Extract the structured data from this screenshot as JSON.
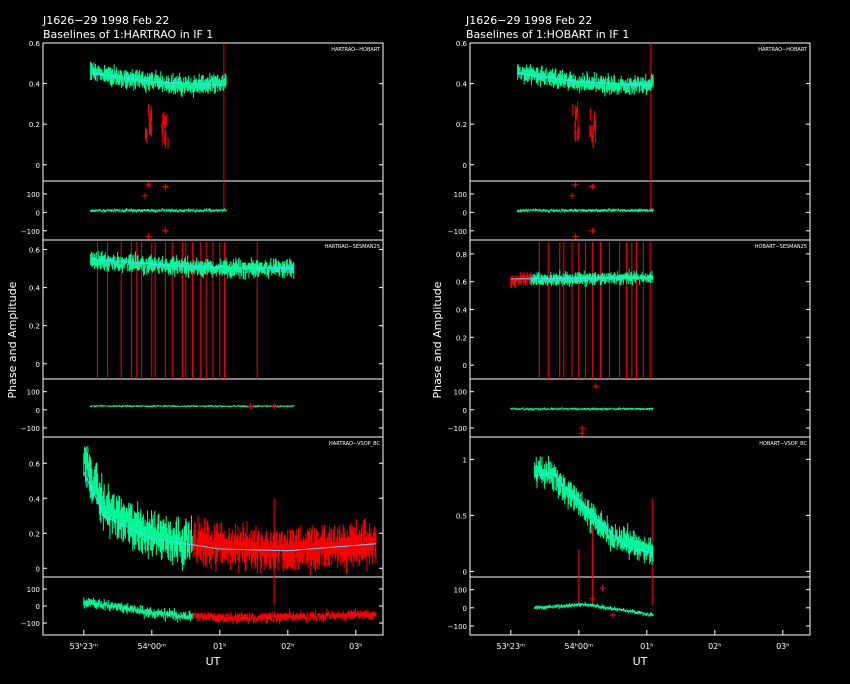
{
  "colors": {
    "background": "#000000",
    "axes": "#ffffff",
    "valid_data": "#00ff99",
    "flagged_data": "#ff0000",
    "model": "#66ccff"
  },
  "chart_data": [
    {
      "type": "scatter",
      "title": "J1626−29  1998 Feb 22",
      "subtitle": "Baselines of 1:HARTRAO in IF 1",
      "ylabel": "Phase and Amplitude",
      "xlabel": "UT",
      "xtick_labels": [
        "53ʰ23ᵐ",
        "54ʰ00ᵐ",
        "01ʰ",
        "02ʰ",
        "03ʰ"
      ],
      "baselines": [
        {
          "name": "HARTRAO−HOBART",
          "amplitude": {
            "ylim": [
              -0.08,
              0.6
            ],
            "yticks": [
              0,
              0.2,
              0.4,
              0.6
            ],
            "ytick_labels": [
              "0",
              "0.2",
              "0.4",
              "0.6"
            ],
            "t_range": [
              0.1,
              2.1
            ],
            "level_points": [
              [
                0.1,
                0.46
              ],
              [
                0.5,
                0.43
              ],
              [
                1.0,
                0.41
              ],
              [
                1.5,
                0.39
              ],
              [
                2.1,
                0.4
              ]
            ],
            "scatter": 0.03,
            "model_points": [
              [
                0.1,
                0.45
              ],
              [
                1.0,
                0.41
              ],
              [
                2.1,
                0.39
              ]
            ],
            "flagged_dips": [
              [
                0.95,
                0.18
              ],
              [
                1.2,
                0.15
              ]
            ],
            "flagged_spikes": [
              [
                2.06,
                0.6
              ]
            ]
          },
          "phase": {
            "ylim": [
              -150,
              170
            ],
            "yticks": [
              -100,
              0,
              100
            ],
            "ytick_labels": [
              "−100",
              "0",
              "100"
            ],
            "t_range": [
              0.1,
              2.1
            ],
            "level": 10,
            "scatter": 8,
            "outliers": [
              [
                0.95,
                150
              ],
              [
                0.95,
                -130
              ],
              [
                1.2,
                140
              ],
              [
                1.2,
                -100
              ],
              [
                0.9,
                90
              ]
            ]
          }
        },
        {
          "name": "HARTRAO−SESMAN25",
          "amplitude": {
            "ylim": [
              -0.08,
              0.65
            ],
            "yticks": [
              0,
              0.2,
              0.4,
              0.6
            ],
            "ytick_labels": [
              "0",
              "0.2",
              "0.4",
              "0.6"
            ],
            "t_range": [
              0.1,
              3.1
            ],
            "level_points": [
              [
                0.1,
                0.54
              ],
              [
                1.0,
                0.52
              ],
              [
                2.0,
                0.5
              ],
              [
                3.1,
                0.5
              ]
            ],
            "scatter": 0.03,
            "model_points": [
              [
                0.1,
                0.55
              ],
              [
                1.5,
                0.51
              ],
              [
                3.1,
                0.5
              ]
            ],
            "flagged_lines": [
              0.2,
              0.35,
              0.55,
              0.7,
              0.78,
              0.85,
              1.0,
              1.05,
              1.2,
              1.3,
              1.45,
              1.5,
              1.6,
              1.72,
              1.8,
              1.9,
              2.0,
              2.07,
              2.55
            ]
          },
          "phase": {
            "ylim": [
              -150,
              170
            ],
            "yticks": [
              -100,
              0,
              100
            ],
            "ytick_labels": [
              "−100",
              "0",
              "100"
            ],
            "t_range": [
              0.1,
              3.1
            ],
            "level": 20,
            "scatter": 5,
            "outliers": [
              [
                2.45,
                20
              ],
              [
                2.8,
                20
              ]
            ]
          }
        },
        {
          "name": "HARTRAO−VSOP_BC",
          "amplitude": {
            "ylim": [
              -0.05,
              0.75
            ],
            "yticks": [
              0,
              0.2,
              0.4,
              0.6
            ],
            "ytick_labels": [
              "0",
              "0.2",
              "0.4",
              "0.6"
            ],
            "t_range": [
              0.0,
              4.3
            ],
            "level_points": [
              [
                0.0,
                0.62
              ],
              [
                0.3,
                0.35
              ],
              [
                0.8,
                0.22
              ],
              [
                1.5,
                0.15
              ],
              [
                2.5,
                0.11
              ],
              [
                3.5,
                0.11
              ],
              [
                4.3,
                0.15
              ]
            ],
            "scatter": 0.08,
            "model_points": [
              [
                0.0,
                0.55
              ],
              [
                0.3,
                0.3
              ],
              [
                1.0,
                0.17
              ],
              [
                2.0,
                0.11
              ],
              [
                3.0,
                0.1
              ],
              [
                4.3,
                0.14
              ]
            ],
            "flagged_range": [
              1.6,
              4.3
            ],
            "flagged_spikes": [
              [
                2.8,
                0.4
              ]
            ]
          },
          "phase": {
            "ylim": [
              -170,
              170
            ],
            "yticks": [
              -100,
              0,
              100
            ],
            "ytick_labels": [
              "−100",
              "0",
              "100"
            ],
            "t_range": [
              0.0,
              4.3
            ],
            "level_points": [
              [
                0.0,
                20
              ],
              [
                0.6,
                -10
              ],
              [
                1.0,
                -40
              ],
              [
                1.5,
                -60
              ],
              [
                2.5,
                -70
              ],
              [
                4.3,
                -50
              ]
            ],
            "scatter": 25,
            "flagged_range": [
              1.6,
              4.3
            ]
          }
        }
      ]
    },
    {
      "type": "scatter",
      "title": "J1626−29  1998 Feb 22",
      "subtitle": "Baselines of 1:HOBART in IF 1",
      "ylabel": "Phase and Amplitude",
      "xlabel": "UT",
      "xtick_labels": [
        "53ʰ23ᵐ",
        "54ʰ00ᵐ",
        "01ʰ",
        "02ʰ",
        "03ʰ"
      ],
      "baselines": [
        {
          "name": "HARTRAO−HOBART",
          "amplitude": {
            "ylim": [
              -0.08,
              0.6
            ],
            "yticks": [
              0,
              0.2,
              0.4,
              0.6
            ],
            "ytick_labels": [
              "0",
              "0.2",
              "0.4",
              "0.6"
            ],
            "t_range": [
              0.1,
              2.1
            ],
            "level_points": [
              [
                0.1,
                0.46
              ],
              [
                0.5,
                0.43
              ],
              [
                1.0,
                0.41
              ],
              [
                1.5,
                0.39
              ],
              [
                2.1,
                0.4
              ]
            ],
            "scatter": 0.03,
            "model_points": [
              [
                0.1,
                0.45
              ],
              [
                1.0,
                0.41
              ],
              [
                2.1,
                0.39
              ]
            ],
            "flagged_dips": [
              [
                0.95,
                0.18
              ],
              [
                1.2,
                0.15
              ]
            ],
            "flagged_spikes": [
              [
                2.06,
                0.6
              ]
            ]
          },
          "phase": {
            "ylim": [
              -150,
              170
            ],
            "yticks": [
              -100,
              0,
              100
            ],
            "ytick_labels": [
              "−100",
              "0",
              "100"
            ],
            "t_range": [
              0.1,
              2.1
            ],
            "level": 10,
            "scatter": 8,
            "outliers": [
              [
                0.95,
                150
              ],
              [
                0.95,
                -130
              ],
              [
                1.2,
                140
              ],
              [
                1.2,
                -100
              ],
              [
                0.9,
                90
              ]
            ]
          }
        },
        {
          "name": "HOBART−SESMAN25",
          "amplitude": {
            "ylim": [
              -0.1,
              0.9
            ],
            "yticks": [
              0,
              0.2,
              0.4,
              0.6,
              0.8
            ],
            "ytick_labels": [
              "0",
              "0.2",
              "0.4",
              "0.6",
              "0.8"
            ],
            "t_range": [
              0.0,
              2.1
            ],
            "level_points": [
              [
                0.0,
                0.6
              ],
              [
                0.3,
                0.62
              ],
              [
                1.0,
                0.62
              ],
              [
                2.1,
                0.63
              ]
            ],
            "scatter": 0.03,
            "model_points": [
              [
                0.0,
                0.62
              ],
              [
                2.1,
                0.63
              ]
            ],
            "flagged_range": [
              0.0,
              0.3
            ],
            "flagged_lines": [
              0.42,
              0.55,
              0.72,
              0.78,
              0.9,
              1.0,
              1.1,
              1.2,
              1.32,
              1.45,
              1.6,
              1.7,
              1.78,
              1.85,
              1.95,
              2.05
            ]
          },
          "phase": {
            "ylim": [
              -150,
              170
            ],
            "yticks": [
              -100,
              0,
              100
            ],
            "ytick_labels": [
              "−100",
              "0",
              "100"
            ],
            "t_range": [
              0.0,
              2.1
            ],
            "level": 5,
            "scatter": 6,
            "outliers": [
              [
                1.05,
                -100
              ],
              [
                1.05,
                -130
              ],
              [
                1.25,
                130
              ]
            ]
          }
        },
        {
          "name": "HOBART−VSOP_BC",
          "amplitude": {
            "ylim": [
              -0.05,
              1.2
            ],
            "yticks": [
              0,
              0.5,
              1
            ],
            "ytick_labels": [
              "0",
              "0.5",
              "1"
            ],
            "t_range": [
              0.35,
              2.1
            ],
            "level_points": [
              [
                0.35,
                0.9
              ],
              [
                0.6,
                0.88
              ],
              [
                1.0,
                0.6
              ],
              [
                1.5,
                0.3
              ],
              [
                2.1,
                0.18
              ]
            ],
            "scatter": 0.08,
            "model_points": [
              [
                0.35,
                0.85
              ],
              [
                0.6,
                0.88
              ],
              [
                1.2,
                0.5
              ],
              [
                1.7,
                0.22
              ],
              [
                2.1,
                0.16
              ]
            ],
            "flagged_spikes": [
              [
                2.08,
                0.65
              ],
              [
                1.2,
                0.4
              ],
              [
                1.0,
                0.2
              ]
            ]
          },
          "phase": {
            "ylim": [
              -150,
              170
            ],
            "yticks": [
              -100,
              0,
              100
            ],
            "ytick_labels": [
              "−100",
              "0",
              "100"
            ],
            "t_range": [
              0.35,
              2.1
            ],
            "level_points": [
              [
                0.35,
                0
              ],
              [
                0.8,
                10
              ],
              [
                1.1,
                20
              ],
              [
                1.6,
                -10
              ],
              [
                2.1,
                -40
              ]
            ],
            "scatter": 10,
            "outliers": [
              [
                1.2,
                50
              ],
              [
                1.35,
                110
              ],
              [
                1.5,
                -40
              ]
            ]
          }
        }
      ]
    }
  ]
}
